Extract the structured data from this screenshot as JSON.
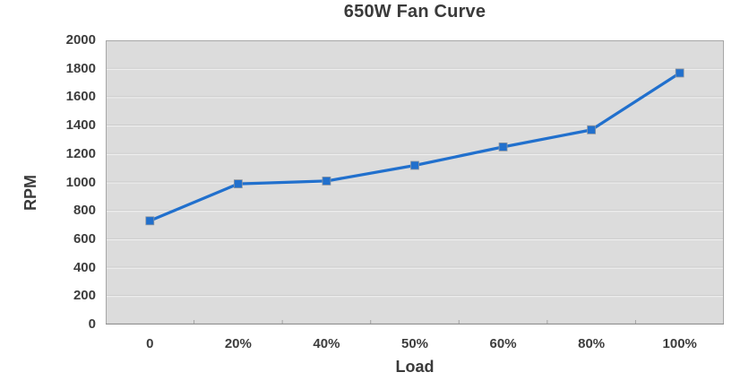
{
  "chart_data": {
    "type": "line",
    "title": "650W Fan Curve",
    "xlabel": "Load",
    "ylabel": "RPM",
    "categories": [
      "0",
      "20%",
      "40%",
      "50%",
      "60%",
      "80%",
      "100%"
    ],
    "values": [
      730,
      990,
      1010,
      1120,
      1250,
      1370,
      1770
    ],
    "ylim": [
      0,
      2000
    ],
    "ytick_step": 200,
    "yticks": [
      0,
      200,
      400,
      600,
      800,
      1000,
      1200,
      1400,
      1600,
      1800,
      2000
    ],
    "grid": true,
    "legend": "none",
    "line_color": "#2170cd",
    "marker": "square",
    "plot_bg": "#dcdcdc",
    "grid_light": "#f4f4f4",
    "grid_shadow": "#c9c9c9",
    "border_color": "#a6a6a6",
    "text_color": "#3a3a3a"
  }
}
